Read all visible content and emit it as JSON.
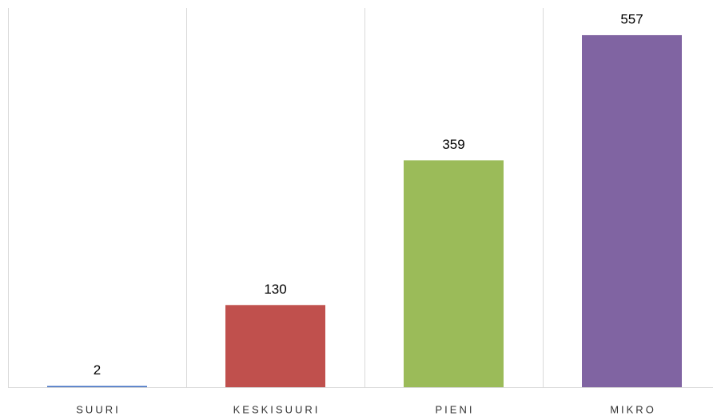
{
  "chart_data": {
    "type": "bar",
    "categories": [
      "SUURI",
      "KESKISUURI",
      "PIENI",
      "MIKRO"
    ],
    "values": [
      2,
      130,
      359,
      557
    ],
    "colors": [
      "#4472c4",
      "#c0504d",
      "#9bbb59",
      "#8064a2"
    ],
    "ylim": [
      0,
      600
    ],
    "grid": true
  }
}
